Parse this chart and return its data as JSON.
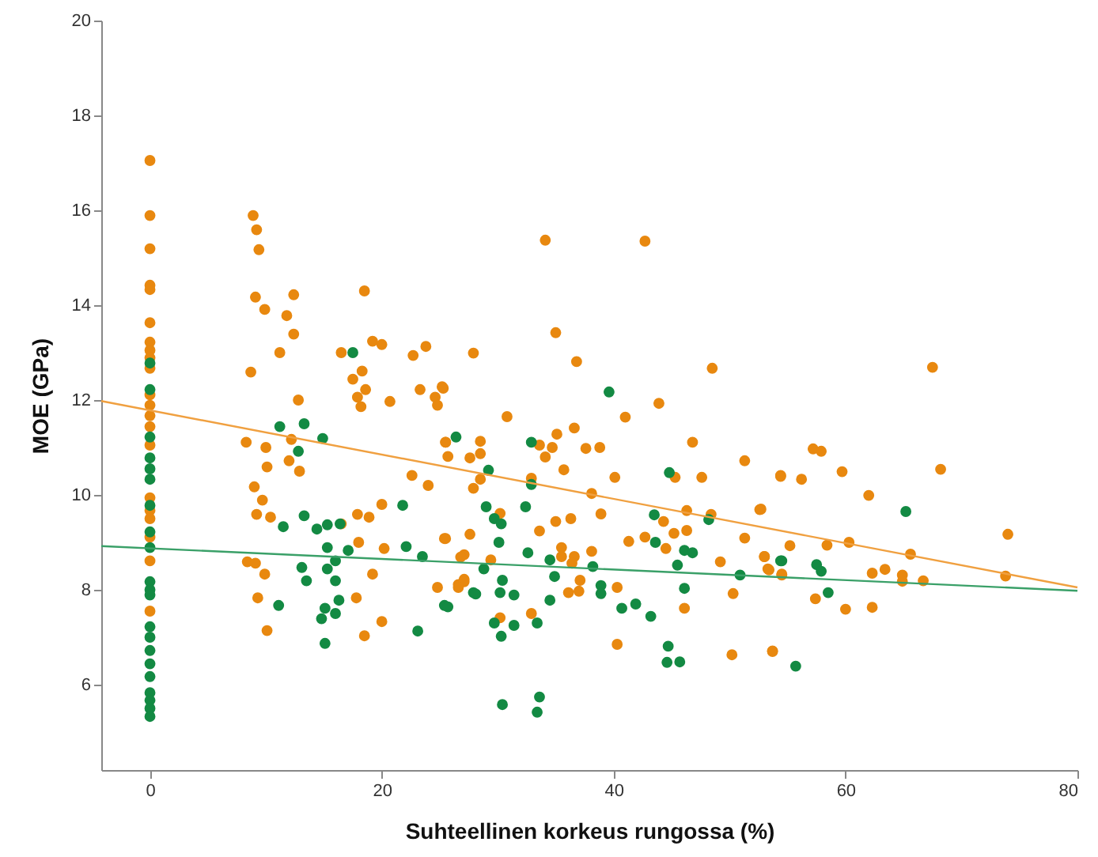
{
  "chart_data": {
    "type": "scatter",
    "xlabel": "Suhteellinen korkeus rungossa (%)",
    "ylabel": "MOE (GPa)",
    "xlim": [
      -4.2,
      80
    ],
    "ylim": [
      4.2,
      20
    ],
    "xticks": [
      0,
      20,
      40,
      60,
      80
    ],
    "yticks": [
      6,
      8,
      10,
      12,
      14,
      16,
      18,
      20
    ],
    "marker": "circle",
    "series": [
      {
        "color": "#e8880f",
        "x": [
          0,
          0,
          0,
          0,
          0,
          0,
          0,
          0,
          0,
          0,
          0,
          0,
          0,
          0,
          0,
          0,
          0,
          0,
          0,
          0,
          0,
          8.9,
          9.2,
          9.4,
          9.1,
          9.9,
          12.4,
          11.8,
          12.4,
          11.2,
          8.7,
          18.5,
          16.5,
          19.2,
          20.0,
          22.7,
          23.8,
          18.3,
          17.5,
          18.6,
          17.9,
          18.2,
          20.7,
          23.3,
          25.2,
          24.6,
          24.8,
          12.8,
          12.2,
          8.3,
          10.0,
          10.1,
          12.0,
          12.9,
          9.0,
          9.7,
          9.2,
          10.4,
          16.5,
          17.9,
          18.9,
          20.0,
          22.6,
          24.0,
          25.5,
          25.7,
          18.0,
          20.2,
          8.4,
          9.1,
          9.9,
          19.2,
          9.3,
          17.8,
          10.1,
          18.5,
          20.0,
          25.4,
          24.8,
          26.6,
          27.1,
          34.1,
          42.7,
          35.0,
          27.9,
          36.8,
          48.5,
          43.9,
          41.0,
          30.8,
          25.3,
          25.5,
          28.5,
          27.6,
          28.5,
          33.6,
          34.7,
          34.1,
          35.1,
          36.6,
          37.6,
          38.8,
          35.7,
          32.9,
          40.1,
          46.8,
          51.3,
          45.3,
          47.6,
          54.4,
          28.5,
          27.9,
          38.1,
          30.2,
          35.0,
          36.3,
          38.9,
          33.6,
          27.6,
          25.5,
          44.3,
          46.3,
          48.4,
          46.3,
          45.2,
          41.3,
          42.7,
          44.5,
          52.6,
          51.3,
          53.0,
          53.3,
          54.5,
          49.2,
          29.4,
          27.1,
          26.8,
          35.5,
          35.5,
          36.6,
          38.1,
          36.4,
          37.1,
          36.1,
          37.0,
          40.3,
          27.1,
          26.6,
          30.2,
          32.9,
          40.3,
          46.1,
          50.3,
          50.2,
          53.7,
          67.5,
          57.2,
          57.9,
          54.4,
          56.2,
          59.7,
          68.2,
          62.0,
          52.7,
          74.0,
          55.2,
          58.4,
          60.3,
          65.6,
          53.0,
          53.4,
          54.5,
          62.3,
          63.4,
          64.9,
          64.9,
          66.7,
          73.8,
          57.4,
          60.0,
          62.3,
          53.7
        ],
        "values": [
          17.05,
          15.89,
          15.19,
          14.42,
          14.33,
          13.63,
          13.22,
          13.05,
          12.89,
          12.67,
          12.11,
          11.89,
          11.67,
          11.44,
          11.05,
          9.94,
          9.67,
          9.5,
          9.11,
          8.61,
          7.55,
          15.89,
          15.59,
          15.17,
          14.17,
          13.91,
          14.22,
          13.78,
          13.39,
          13.0,
          12.59,
          14.3,
          13.0,
          13.24,
          13.17,
          12.94,
          13.13,
          12.61,
          12.44,
          12.22,
          12.06,
          11.86,
          11.97,
          12.22,
          12.28,
          12.06,
          11.89,
          12.0,
          11.17,
          11.11,
          11.0,
          10.59,
          10.72,
          10.5,
          10.17,
          9.89,
          9.59,
          9.53,
          9.39,
          9.59,
          9.53,
          9.8,
          10.41,
          10.2,
          11.11,
          10.81,
          9.0,
          8.87,
          8.59,
          8.56,
          8.33,
          8.33,
          7.83,
          7.83,
          7.14,
          7.03,
          7.33,
          9.08,
          8.05,
          8.11,
          8.22,
          15.37,
          15.35,
          13.42,
          12.99,
          12.81,
          12.67,
          11.93,
          11.64,
          11.65,
          12.25,
          11.11,
          11.13,
          10.78,
          10.87,
          11.05,
          11.0,
          10.8,
          11.28,
          11.41,
          10.98,
          11.0,
          10.53,
          10.35,
          10.37,
          11.11,
          10.72,
          10.37,
          10.37,
          10.39,
          10.33,
          10.14,
          10.03,
          9.61,
          9.44,
          9.5,
          9.6,
          9.24,
          9.17,
          9.08,
          9.44,
          9.67,
          9.59,
          9.25,
          9.19,
          9.02,
          9.11,
          8.87,
          9.69,
          9.09,
          8.7,
          8.44,
          8.33,
          8.59,
          8.63,
          8.74,
          8.69,
          8.89,
          8.7,
          8.7,
          8.81,
          8.56,
          8.2,
          7.94,
          7.97,
          8.05,
          8.17,
          8.05,
          7.41,
          7.5,
          6.85,
          7.61,
          7.92,
          6.63,
          6.7,
          12.69,
          10.97,
          10.92,
          10.41,
          10.33,
          10.49,
          10.54,
          9.99,
          9.7,
          9.17,
          8.93,
          8.94,
          9.0,
          8.75,
          8.7,
          8.42,
          8.31,
          8.35,
          8.43,
          8.31,
          8.18,
          8.19,
          8.29,
          7.81,
          7.59,
          7.63,
          6.71
        ]
      },
      {
        "color": "#138a43",
        "x": [
          0,
          0,
          0,
          0,
          0,
          0,
          0,
          0,
          0,
          0,
          0,
          0,
          0,
          0,
          0,
          0,
          0,
          0,
          0,
          0,
          0,
          17.5,
          11.2,
          13.3,
          14.9,
          12.8,
          26.4,
          21.8,
          13.3,
          11.5,
          14.4,
          15.3,
          16.4,
          15.3,
          17.1,
          22.1,
          23.5,
          13.1,
          15.3,
          16.0,
          13.5,
          16.0,
          16.3,
          15.1,
          16.0,
          14.8,
          11.1,
          15.1,
          23.1,
          25.4,
          27.9,
          39.6,
          32.9,
          29.2,
          32.9,
          44.8,
          29.0,
          32.4,
          29.7,
          30.3,
          30.1,
          43.5,
          43.6,
          48.2,
          46.1,
          46.8,
          45.5,
          50.9,
          54.5,
          32.6,
          34.5,
          34.9,
          38.2,
          38.9,
          38.9,
          28.8,
          30.4,
          30.2,
          31.4,
          28.1,
          34.5,
          40.7,
          41.9,
          43.2,
          46.1,
          29.7,
          31.4,
          33.4,
          30.3,
          44.7,
          44.6,
          45.7,
          30.4,
          33.6,
          33.4,
          25.7,
          65.2,
          54.4,
          57.5,
          57.9,
          58.5,
          55.7
        ],
        "values": [
          12.78,
          12.22,
          11.22,
          10.78,
          10.55,
          10.33,
          9.78,
          9.22,
          8.89,
          8.17,
          8.0,
          7.89,
          7.22,
          7.0,
          6.72,
          6.44,
          6.17,
          5.83,
          5.67,
          5.5,
          5.33,
          13.0,
          11.44,
          11.5,
          11.19,
          10.92,
          11.22,
          9.78,
          9.56,
          9.33,
          9.28,
          9.37,
          9.39,
          8.89,
          8.83,
          8.91,
          8.7,
          8.47,
          8.44,
          8.61,
          8.19,
          8.19,
          7.78,
          7.61,
          7.5,
          7.39,
          7.67,
          6.87,
          7.13,
          7.67,
          7.94,
          12.17,
          11.11,
          10.52,
          10.22,
          10.47,
          9.75,
          9.75,
          9.5,
          9.39,
          9.0,
          9.58,
          9.0,
          9.48,
          8.83,
          8.78,
          8.52,
          8.31,
          8.61,
          8.78,
          8.63,
          8.28,
          8.49,
          8.09,
          7.92,
          8.44,
          8.2,
          7.94,
          7.89,
          7.91,
          7.78,
          7.61,
          7.7,
          7.44,
          8.03,
          7.3,
          7.25,
          7.3,
          7.02,
          6.81,
          6.47,
          6.48,
          5.58,
          5.74,
          5.42,
          7.64,
          9.65,
          8.61,
          8.53,
          8.39,
          7.94,
          6.39
        ]
      },
      {
        "type": "line",
        "marker": "none",
        "color": "#f0a040",
        "x": [
          -4.2,
          80
        ],
        "values": [
          11.98,
          8.05
        ]
      },
      {
        "type": "line",
        "marker": "none",
        "color": "#3aa068",
        "x": [
          -4.2,
          80
        ],
        "values": [
          8.92,
          7.98
        ]
      }
    ]
  }
}
